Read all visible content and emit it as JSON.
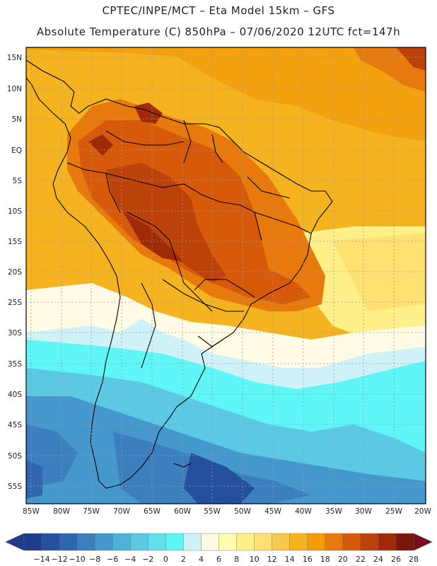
{
  "header": {
    "line1": "CPTEC/INPE/MCT –  Eta Model 15km – GFS",
    "line2": "Absolute Temperature (C) 850hPa – 07/06/2020 12UTC fct=147h"
  },
  "map": {
    "lat_labels": [
      "15N",
      "10N",
      "5N",
      "EQ",
      "5S",
      "10S",
      "15S",
      "20S",
      "25S",
      "30S",
      "35S",
      "40S",
      "45S",
      "50S",
      "55S"
    ],
    "lon_labels": [
      "85W",
      "80W",
      "75W",
      "70W",
      "65W",
      "60W",
      "55W",
      "50W",
      "45W",
      "40W",
      "35W",
      "30W",
      "25W",
      "20W"
    ]
  },
  "colorbar": {
    "labels": [
      "-14",
      "-12",
      "-10",
      "-8",
      "-6",
      "-4",
      "-2",
      "0",
      "2",
      "4",
      "6",
      "8",
      "10",
      "12",
      "14",
      "16",
      "18",
      "20",
      "22",
      "24",
      "26",
      "28"
    ],
    "colors": [
      "#1f3c8c",
      "#24509e",
      "#2f66ad",
      "#3b7fbe",
      "#4598cb",
      "#4fb2d8",
      "#5cc9e4",
      "#5fe0ea",
      "#5ff6f8",
      "#cff2f8",
      "#fffbe4",
      "#ffffb0",
      "#fff08a",
      "#ffe070",
      "#f7c94c",
      "#f5b41f",
      "#f39c0a",
      "#e8790c",
      "#d75a0a",
      "#bd420a",
      "#9e2a08",
      "#7a1808"
    ],
    "low_end_color": "#1f3c8c",
    "high_end_color": "#7a0b1e"
  }
}
